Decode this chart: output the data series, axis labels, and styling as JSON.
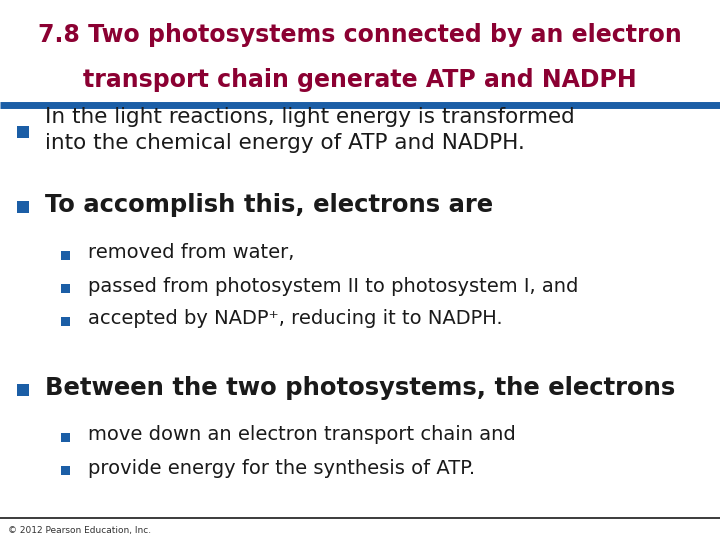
{
  "title_line1": "7.8 Two photosystems connected by an electron",
  "title_line2": "transport chain generate ATP and NADPH",
  "title_color": "#8B0032",
  "title_bg_color": "#FFFFFF",
  "header_line_color": "#1B5EA6",
  "body_bg_color": "#FFFFFF",
  "bullet_color": "#1B5EA6",
  "body_text_color": "#1a1a1a",
  "footer_line_color": "#1A1A1A",
  "footer_text": "© 2012 Pearson Education, Inc.",
  "footer_text_color": "#333333",
  "items": [
    {
      "level": 1,
      "text": "In the light reactions, light energy is transformed\ninto the chemical energy of ATP and NADPH.",
      "bold": false,
      "fontsize": 15.5
    },
    {
      "level": 1,
      "text": "To accomplish this, electrons are",
      "bold": true,
      "fontsize": 17.5
    },
    {
      "level": 2,
      "text": "removed from water,",
      "bold": false,
      "fontsize": 14
    },
    {
      "level": 2,
      "text": "passed from photosystem II to photosystem I, and",
      "bold": false,
      "fontsize": 14
    },
    {
      "level": 2,
      "text": "accepted by NADP⁺, reducing it to NADPH.",
      "bold": false,
      "fontsize": 14
    },
    {
      "level": 1,
      "text": "Between the two photosystems, the electrons",
      "bold": true,
      "fontsize": 17.5
    },
    {
      "level": 2,
      "text": "move down an electron transport chain and",
      "bold": false,
      "fontsize": 14
    },
    {
      "level": 2,
      "text": "provide energy for the synthesis of ATP.",
      "bold": false,
      "fontsize": 14
    }
  ]
}
